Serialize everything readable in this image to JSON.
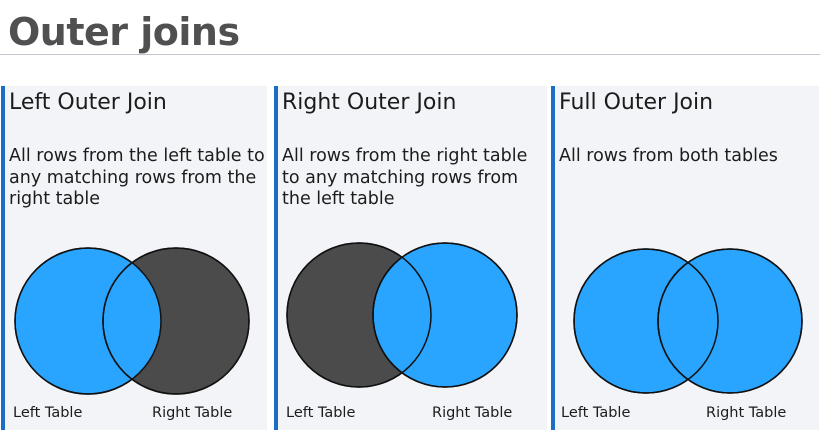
{
  "slide": {
    "title": "Outer joins"
  },
  "colors": {
    "highlight": "#29a5ff",
    "excluded": "#4b4b4b",
    "outline": "#111111",
    "accent": "#1a6fc4"
  },
  "panels": [
    {
      "title": "Left Outer Join",
      "description": "All rows from the left table to any matching rows from the right table",
      "left_label": "Left Table",
      "right_label": "Right Table",
      "left_included": true,
      "right_included": false
    },
    {
      "title": "Right Outer Join",
      "description": "All rows from the right table to any matching rows from the left table",
      "left_label": "Left Table",
      "right_label": "Right Table",
      "left_included": false,
      "right_included": true
    },
    {
      "title": "Full Outer Join",
      "description": "All rows from both tables",
      "left_label": "Left Table",
      "right_label": "Right Table",
      "left_included": true,
      "right_included": true
    }
  ]
}
